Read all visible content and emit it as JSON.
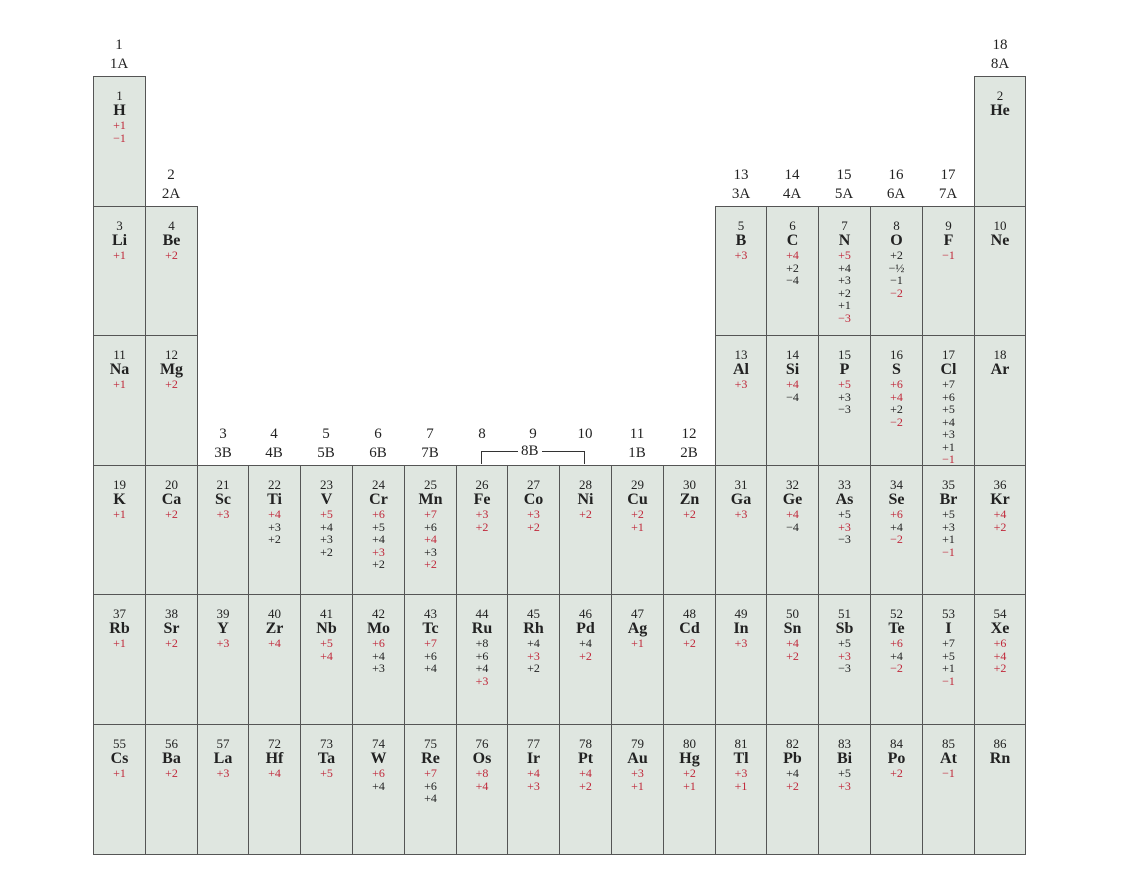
{
  "groups": [
    {
      "col": 0,
      "row": 0,
      "num": "1",
      "label": "1A"
    },
    {
      "col": 1,
      "row": 1,
      "num": "2",
      "label": "2A"
    },
    {
      "col": 2,
      "row": 3,
      "num": "3",
      "label": "3B"
    },
    {
      "col": 3,
      "row": 3,
      "num": "4",
      "label": "4B"
    },
    {
      "col": 4,
      "row": 3,
      "num": "5",
      "label": "5B"
    },
    {
      "col": 5,
      "row": 3,
      "num": "6",
      "label": "6B"
    },
    {
      "col": 6,
      "row": 3,
      "num": "7",
      "label": "7B"
    },
    {
      "col": 7,
      "row": 3,
      "num": "8",
      "label": ""
    },
    {
      "col": 8,
      "row": 3,
      "num": "9",
      "label": ""
    },
    {
      "col": 9,
      "row": 3,
      "num": "10",
      "label": ""
    },
    {
      "col": 10,
      "row": 3,
      "num": "11",
      "label": "1B"
    },
    {
      "col": 11,
      "row": 3,
      "num": "12",
      "label": "2B"
    },
    {
      "col": 12,
      "row": 1,
      "num": "13",
      "label": "3A"
    },
    {
      "col": 13,
      "row": 1,
      "num": "14",
      "label": "4A"
    },
    {
      "col": 14,
      "row": 1,
      "num": "15",
      "label": "5A"
    },
    {
      "col": 15,
      "row": 1,
      "num": "16",
      "label": "6A"
    },
    {
      "col": 16,
      "row": 1,
      "num": "17",
      "label": "7A"
    },
    {
      "col": 17,
      "row": 0,
      "num": "18",
      "label": "8A"
    }
  ],
  "group8b_label": "8B",
  "colors": {
    "cell_fill": "#dfe6e0",
    "red": "#c0283a",
    "black": "#222222",
    "border": "#555555"
  },
  "elements": [
    {
      "col": 0,
      "row": 0,
      "num": "1",
      "sym": "H",
      "ox": [
        [
          "+1",
          "r"
        ],
        [
          "−1",
          "r"
        ]
      ]
    },
    {
      "col": 17,
      "row": 0,
      "num": "2",
      "sym": "He",
      "ox": []
    },
    {
      "col": 0,
      "row": 1,
      "num": "3",
      "sym": "Li",
      "ox": [
        [
          "+1",
          "r"
        ]
      ]
    },
    {
      "col": 1,
      "row": 1,
      "num": "4",
      "sym": "Be",
      "ox": [
        [
          "+2",
          "r"
        ]
      ]
    },
    {
      "col": 12,
      "row": 1,
      "num": "5",
      "sym": "B",
      "ox": [
        [
          "+3",
          "r"
        ]
      ]
    },
    {
      "col": 13,
      "row": 1,
      "num": "6",
      "sym": "C",
      "ox": [
        [
          "+4",
          "r"
        ],
        [
          "+2",
          "b"
        ],
        [
          "−4",
          "b"
        ]
      ]
    },
    {
      "col": 14,
      "row": 1,
      "num": "7",
      "sym": "N",
      "ox": [
        [
          "+5",
          "r"
        ],
        [
          "+4",
          "b"
        ],
        [
          "+3",
          "b"
        ],
        [
          "+2",
          "b"
        ],
        [
          "+1",
          "b"
        ],
        [
          "−3",
          "r"
        ]
      ]
    },
    {
      "col": 15,
      "row": 1,
      "num": "8",
      "sym": "O",
      "ox": [
        [
          "+2",
          "b"
        ],
        [
          "−½",
          "b"
        ],
        [
          "−1",
          "b"
        ],
        [
          "−2",
          "r"
        ]
      ]
    },
    {
      "col": 16,
      "row": 1,
      "num": "9",
      "sym": "F",
      "ox": [
        [
          "−1",
          "r"
        ]
      ]
    },
    {
      "col": 17,
      "row": 1,
      "num": "10",
      "sym": "Ne",
      "ox": []
    },
    {
      "col": 0,
      "row": 2,
      "num": "11",
      "sym": "Na",
      "ox": [
        [
          "+1",
          "r"
        ]
      ]
    },
    {
      "col": 1,
      "row": 2,
      "num": "12",
      "sym": "Mg",
      "ox": [
        [
          "+2",
          "r"
        ]
      ]
    },
    {
      "col": 12,
      "row": 2,
      "num": "13",
      "sym": "Al",
      "ox": [
        [
          "+3",
          "r"
        ]
      ]
    },
    {
      "col": 13,
      "row": 2,
      "num": "14",
      "sym": "Si",
      "ox": [
        [
          "+4",
          "r"
        ],
        [
          "−4",
          "b"
        ]
      ]
    },
    {
      "col": 14,
      "row": 2,
      "num": "15",
      "sym": "P",
      "ox": [
        [
          "+5",
          "r"
        ],
        [
          "+3",
          "b"
        ],
        [
          "−3",
          "b"
        ]
      ]
    },
    {
      "col": 15,
      "row": 2,
      "num": "16",
      "sym": "S",
      "ox": [
        [
          "+6",
          "r"
        ],
        [
          "+4",
          "r"
        ],
        [
          "+2",
          "b"
        ],
        [
          "−2",
          "r"
        ]
      ]
    },
    {
      "col": 16,
      "row": 2,
      "num": "17",
      "sym": "Cl",
      "ox": [
        [
          "+7",
          "b"
        ],
        [
          "+6",
          "b"
        ],
        [
          "+5",
          "b"
        ],
        [
          "+4",
          "b"
        ],
        [
          "+3",
          "b"
        ],
        [
          "+1",
          "b"
        ],
        [
          "−1",
          "r"
        ]
      ]
    },
    {
      "col": 17,
      "row": 2,
      "num": "18",
      "sym": "Ar",
      "ox": []
    },
    {
      "col": 0,
      "row": 3,
      "num": "19",
      "sym": "K",
      "ox": [
        [
          "+1",
          "r"
        ]
      ]
    },
    {
      "col": 1,
      "row": 3,
      "num": "20",
      "sym": "Ca",
      "ox": [
        [
          "+2",
          "r"
        ]
      ]
    },
    {
      "col": 2,
      "row": 3,
      "num": "21",
      "sym": "Sc",
      "ox": [
        [
          "+3",
          "r"
        ]
      ]
    },
    {
      "col": 3,
      "row": 3,
      "num": "22",
      "sym": "Ti",
      "ox": [
        [
          "+4",
          "r"
        ],
        [
          "+3",
          "b"
        ],
        [
          "+2",
          "b"
        ]
      ]
    },
    {
      "col": 4,
      "row": 3,
      "num": "23",
      "sym": "V",
      "ox": [
        [
          "+5",
          "r"
        ],
        [
          "+4",
          "b"
        ],
        [
          "+3",
          "b"
        ],
        [
          "+2",
          "b"
        ]
      ]
    },
    {
      "col": 5,
      "row": 3,
      "num": "24",
      "sym": "Cr",
      "ox": [
        [
          "+6",
          "r"
        ],
        [
          "+5",
          "b"
        ],
        [
          "+4",
          "b"
        ],
        [
          "+3",
          "r"
        ],
        [
          "+2",
          "b"
        ]
      ]
    },
    {
      "col": 6,
      "row": 3,
      "num": "25",
      "sym": "Mn",
      "ox": [
        [
          "+7",
          "r"
        ],
        [
          "+6",
          "b"
        ],
        [
          "+4",
          "r"
        ],
        [
          "+3",
          "b"
        ],
        [
          "+2",
          "r"
        ]
      ]
    },
    {
      "col": 7,
      "row": 3,
      "num": "26",
      "sym": "Fe",
      "ox": [
        [
          "+3",
          "r"
        ],
        [
          "+2",
          "r"
        ]
      ]
    },
    {
      "col": 8,
      "row": 3,
      "num": "27",
      "sym": "Co",
      "ox": [
        [
          "+3",
          "r"
        ],
        [
          "+2",
          "r"
        ]
      ]
    },
    {
      "col": 9,
      "row": 3,
      "num": "28",
      "sym": "Ni",
      "ox": [
        [
          "+2",
          "r"
        ]
      ]
    },
    {
      "col": 10,
      "row": 3,
      "num": "29",
      "sym": "Cu",
      "ox": [
        [
          "+2",
          "r"
        ],
        [
          "+1",
          "r"
        ]
      ]
    },
    {
      "col": 11,
      "row": 3,
      "num": "30",
      "sym": "Zn",
      "ox": [
        [
          "+2",
          "r"
        ]
      ]
    },
    {
      "col": 12,
      "row": 3,
      "num": "31",
      "sym": "Ga",
      "ox": [
        [
          "+3",
          "r"
        ]
      ]
    },
    {
      "col": 13,
      "row": 3,
      "num": "32",
      "sym": "Ge",
      "ox": [
        [
          "+4",
          "r"
        ],
        [
          "−4",
          "b"
        ]
      ]
    },
    {
      "col": 14,
      "row": 3,
      "num": "33",
      "sym": "As",
      "ox": [
        [
          "+5",
          "b"
        ],
        [
          "+3",
          "r"
        ],
        [
          "−3",
          "b"
        ]
      ]
    },
    {
      "col": 15,
      "row": 3,
      "num": "34",
      "sym": "Se",
      "ox": [
        [
          "+6",
          "r"
        ],
        [
          "+4",
          "b"
        ],
        [
          "−2",
          "r"
        ]
      ]
    },
    {
      "col": 16,
      "row": 3,
      "num": "35",
      "sym": "Br",
      "ox": [
        [
          "+5",
          "b"
        ],
        [
          "+3",
          "b"
        ],
        [
          "+1",
          "b"
        ],
        [
          "−1",
          "r"
        ]
      ]
    },
    {
      "col": 17,
      "row": 3,
      "num": "36",
      "sym": "Kr",
      "ox": [
        [
          "+4",
          "r"
        ],
        [
          "+2",
          "r"
        ]
      ]
    },
    {
      "col": 0,
      "row": 4,
      "num": "37",
      "sym": "Rb",
      "ox": [
        [
          "+1",
          "r"
        ]
      ]
    },
    {
      "col": 1,
      "row": 4,
      "num": "38",
      "sym": "Sr",
      "ox": [
        [
          "+2",
          "r"
        ]
      ]
    },
    {
      "col": 2,
      "row": 4,
      "num": "39",
      "sym": "Y",
      "ox": [
        [
          "+3",
          "r"
        ]
      ]
    },
    {
      "col": 3,
      "row": 4,
      "num": "40",
      "sym": "Zr",
      "ox": [
        [
          "+4",
          "r"
        ]
      ]
    },
    {
      "col": 4,
      "row": 4,
      "num": "41",
      "sym": "Nb",
      "ox": [
        [
          "+5",
          "r"
        ],
        [
          "+4",
          "r"
        ]
      ]
    },
    {
      "col": 5,
      "row": 4,
      "num": "42",
      "sym": "Mo",
      "ox": [
        [
          "+6",
          "r"
        ],
        [
          "+4",
          "b"
        ],
        [
          "+3",
          "b"
        ]
      ]
    },
    {
      "col": 6,
      "row": 4,
      "num": "43",
      "sym": "Tc",
      "ox": [
        [
          "+7",
          "r"
        ],
        [
          "+6",
          "b"
        ],
        [
          "+4",
          "b"
        ]
      ]
    },
    {
      "col": 7,
      "row": 4,
      "num": "44",
      "sym": "Ru",
      "ox": [
        [
          "+8",
          "b"
        ],
        [
          "+6",
          "b"
        ],
        [
          "+4",
          "b"
        ],
        [
          "+3",
          "r"
        ]
      ]
    },
    {
      "col": 8,
      "row": 4,
      "num": "45",
      "sym": "Rh",
      "ox": [
        [
          "+4",
          "b"
        ],
        [
          "+3",
          "r"
        ],
        [
          "+2",
          "b"
        ]
      ]
    },
    {
      "col": 9,
      "row": 4,
      "num": "46",
      "sym": "Pd",
      "ox": [
        [
          "+4",
          "b"
        ],
        [
          "+2",
          "r"
        ]
      ]
    },
    {
      "col": 10,
      "row": 4,
      "num": "47",
      "sym": "Ag",
      "ox": [
        [
          "+1",
          "r"
        ]
      ]
    },
    {
      "col": 11,
      "row": 4,
      "num": "48",
      "sym": "Cd",
      "ox": [
        [
          "+2",
          "r"
        ]
      ]
    },
    {
      "col": 12,
      "row": 4,
      "num": "49",
      "sym": "In",
      "ox": [
        [
          "+3",
          "r"
        ]
      ]
    },
    {
      "col": 13,
      "row": 4,
      "num": "50",
      "sym": "Sn",
      "ox": [
        [
          "+4",
          "r"
        ],
        [
          "+2",
          "r"
        ]
      ]
    },
    {
      "col": 14,
      "row": 4,
      "num": "51",
      "sym": "Sb",
      "ox": [
        [
          "+5",
          "b"
        ],
        [
          "+3",
          "r"
        ],
        [
          "−3",
          "b"
        ]
      ]
    },
    {
      "col": 15,
      "row": 4,
      "num": "52",
      "sym": "Te",
      "ox": [
        [
          "+6",
          "r"
        ],
        [
          "+4",
          "b"
        ],
        [
          "−2",
          "r"
        ]
      ]
    },
    {
      "col": 16,
      "row": 4,
      "num": "53",
      "sym": "I",
      "ox": [
        [
          "+7",
          "b"
        ],
        [
          "+5",
          "b"
        ],
        [
          "+1",
          "b"
        ],
        [
          "−1",
          "r"
        ]
      ]
    },
    {
      "col": 17,
      "row": 4,
      "num": "54",
      "sym": "Xe",
      "ox": [
        [
          "+6",
          "r"
        ],
        [
          "+4",
          "r"
        ],
        [
          "+2",
          "r"
        ]
      ]
    },
    {
      "col": 0,
      "row": 5,
      "num": "55",
      "sym": "Cs",
      "ox": [
        [
          "+1",
          "r"
        ]
      ]
    },
    {
      "col": 1,
      "row": 5,
      "num": "56",
      "sym": "Ba",
      "ox": [
        [
          "+2",
          "r"
        ]
      ]
    },
    {
      "col": 2,
      "row": 5,
      "num": "57",
      "sym": "La",
      "ox": [
        [
          "+3",
          "r"
        ]
      ]
    },
    {
      "col": 3,
      "row": 5,
      "num": "72",
      "sym": "Hf",
      "ox": [
        [
          "+4",
          "r"
        ]
      ]
    },
    {
      "col": 4,
      "row": 5,
      "num": "73",
      "sym": "Ta",
      "ox": [
        [
          "+5",
          "r"
        ]
      ]
    },
    {
      "col": 5,
      "row": 5,
      "num": "74",
      "sym": "W",
      "ox": [
        [
          "+6",
          "r"
        ],
        [
          "+4",
          "b"
        ]
      ]
    },
    {
      "col": 6,
      "row": 5,
      "num": "75",
      "sym": "Re",
      "ox": [
        [
          "+7",
          "r"
        ],
        [
          "+6",
          "b"
        ],
        [
          "+4",
          "b"
        ]
      ]
    },
    {
      "col": 7,
      "row": 5,
      "num": "76",
      "sym": "Os",
      "ox": [
        [
          "+8",
          "r"
        ],
        [
          "+4",
          "r"
        ]
      ]
    },
    {
      "col": 8,
      "row": 5,
      "num": "77",
      "sym": "Ir",
      "ox": [
        [
          "+4",
          "r"
        ],
        [
          "+3",
          "r"
        ]
      ]
    },
    {
      "col": 9,
      "row": 5,
      "num": "78",
      "sym": "Pt",
      "ox": [
        [
          "+4",
          "r"
        ],
        [
          "+2",
          "r"
        ]
      ]
    },
    {
      "col": 10,
      "row": 5,
      "num": "79",
      "sym": "Au",
      "ox": [
        [
          "+3",
          "r"
        ],
        [
          "+1",
          "r"
        ]
      ]
    },
    {
      "col": 11,
      "row": 5,
      "num": "80",
      "sym": "Hg",
      "ox": [
        [
          "+2",
          "r"
        ],
        [
          "+1",
          "r"
        ]
      ]
    },
    {
      "col": 12,
      "row": 5,
      "num": "81",
      "sym": "Tl",
      "ox": [
        [
          "+3",
          "r"
        ],
        [
          "+1",
          "r"
        ]
      ]
    },
    {
      "col": 13,
      "row": 5,
      "num": "82",
      "sym": "Pb",
      "ox": [
        [
          "+4",
          "b"
        ],
        [
          "+2",
          "r"
        ]
      ]
    },
    {
      "col": 14,
      "row": 5,
      "num": "83",
      "sym": "Bi",
      "ox": [
        [
          "+5",
          "b"
        ],
        [
          "+3",
          "r"
        ]
      ]
    },
    {
      "col": 15,
      "row": 5,
      "num": "84",
      "sym": "Po",
      "ox": [
        [
          "+2",
          "r"
        ]
      ]
    },
    {
      "col": 16,
      "row": 5,
      "num": "85",
      "sym": "At",
      "ox": [
        [
          "−1",
          "r"
        ]
      ]
    },
    {
      "col": 17,
      "row": 5,
      "num": "86",
      "sym": "Rn",
      "ox": []
    }
  ]
}
